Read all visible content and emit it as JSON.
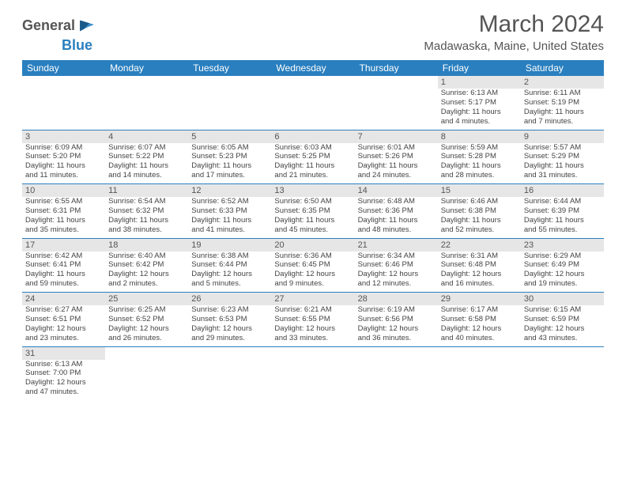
{
  "logo": {
    "text1": "General",
    "text2": "Blue"
  },
  "title": "March 2024",
  "location": "Madawaska, Maine, United States",
  "day_headers": [
    "Sunday",
    "Monday",
    "Tuesday",
    "Wednesday",
    "Thursday",
    "Friday",
    "Saturday"
  ],
  "header_bg": "#2a7fbf",
  "header_fg": "#ffffff",
  "daynum_bg": "#e6e6e6",
  "text_color": "#444444",
  "rule_color": "#2a7fbf",
  "weeks": [
    [
      null,
      null,
      null,
      null,
      null,
      {
        "n": "1",
        "sr": "Sunrise: 6:13 AM",
        "ss": "Sunset: 5:17 PM",
        "d1": "Daylight: 11 hours",
        "d2": "and 4 minutes."
      },
      {
        "n": "2",
        "sr": "Sunrise: 6:11 AM",
        "ss": "Sunset: 5:19 PM",
        "d1": "Daylight: 11 hours",
        "d2": "and 7 minutes."
      }
    ],
    [
      {
        "n": "3",
        "sr": "Sunrise: 6:09 AM",
        "ss": "Sunset: 5:20 PM",
        "d1": "Daylight: 11 hours",
        "d2": "and 11 minutes."
      },
      {
        "n": "4",
        "sr": "Sunrise: 6:07 AM",
        "ss": "Sunset: 5:22 PM",
        "d1": "Daylight: 11 hours",
        "d2": "and 14 minutes."
      },
      {
        "n": "5",
        "sr": "Sunrise: 6:05 AM",
        "ss": "Sunset: 5:23 PM",
        "d1": "Daylight: 11 hours",
        "d2": "and 17 minutes."
      },
      {
        "n": "6",
        "sr": "Sunrise: 6:03 AM",
        "ss": "Sunset: 5:25 PM",
        "d1": "Daylight: 11 hours",
        "d2": "and 21 minutes."
      },
      {
        "n": "7",
        "sr": "Sunrise: 6:01 AM",
        "ss": "Sunset: 5:26 PM",
        "d1": "Daylight: 11 hours",
        "d2": "and 24 minutes."
      },
      {
        "n": "8",
        "sr": "Sunrise: 5:59 AM",
        "ss": "Sunset: 5:28 PM",
        "d1": "Daylight: 11 hours",
        "d2": "and 28 minutes."
      },
      {
        "n": "9",
        "sr": "Sunrise: 5:57 AM",
        "ss": "Sunset: 5:29 PM",
        "d1": "Daylight: 11 hours",
        "d2": "and 31 minutes."
      }
    ],
    [
      {
        "n": "10",
        "sr": "Sunrise: 6:55 AM",
        "ss": "Sunset: 6:31 PM",
        "d1": "Daylight: 11 hours",
        "d2": "and 35 minutes."
      },
      {
        "n": "11",
        "sr": "Sunrise: 6:54 AM",
        "ss": "Sunset: 6:32 PM",
        "d1": "Daylight: 11 hours",
        "d2": "and 38 minutes."
      },
      {
        "n": "12",
        "sr": "Sunrise: 6:52 AM",
        "ss": "Sunset: 6:33 PM",
        "d1": "Daylight: 11 hours",
        "d2": "and 41 minutes."
      },
      {
        "n": "13",
        "sr": "Sunrise: 6:50 AM",
        "ss": "Sunset: 6:35 PM",
        "d1": "Daylight: 11 hours",
        "d2": "and 45 minutes."
      },
      {
        "n": "14",
        "sr": "Sunrise: 6:48 AM",
        "ss": "Sunset: 6:36 PM",
        "d1": "Daylight: 11 hours",
        "d2": "and 48 minutes."
      },
      {
        "n": "15",
        "sr": "Sunrise: 6:46 AM",
        "ss": "Sunset: 6:38 PM",
        "d1": "Daylight: 11 hours",
        "d2": "and 52 minutes."
      },
      {
        "n": "16",
        "sr": "Sunrise: 6:44 AM",
        "ss": "Sunset: 6:39 PM",
        "d1": "Daylight: 11 hours",
        "d2": "and 55 minutes."
      }
    ],
    [
      {
        "n": "17",
        "sr": "Sunrise: 6:42 AM",
        "ss": "Sunset: 6:41 PM",
        "d1": "Daylight: 11 hours",
        "d2": "and 59 minutes."
      },
      {
        "n": "18",
        "sr": "Sunrise: 6:40 AM",
        "ss": "Sunset: 6:42 PM",
        "d1": "Daylight: 12 hours",
        "d2": "and 2 minutes."
      },
      {
        "n": "19",
        "sr": "Sunrise: 6:38 AM",
        "ss": "Sunset: 6:44 PM",
        "d1": "Daylight: 12 hours",
        "d2": "and 5 minutes."
      },
      {
        "n": "20",
        "sr": "Sunrise: 6:36 AM",
        "ss": "Sunset: 6:45 PM",
        "d1": "Daylight: 12 hours",
        "d2": "and 9 minutes."
      },
      {
        "n": "21",
        "sr": "Sunrise: 6:34 AM",
        "ss": "Sunset: 6:46 PM",
        "d1": "Daylight: 12 hours",
        "d2": "and 12 minutes."
      },
      {
        "n": "22",
        "sr": "Sunrise: 6:31 AM",
        "ss": "Sunset: 6:48 PM",
        "d1": "Daylight: 12 hours",
        "d2": "and 16 minutes."
      },
      {
        "n": "23",
        "sr": "Sunrise: 6:29 AM",
        "ss": "Sunset: 6:49 PM",
        "d1": "Daylight: 12 hours",
        "d2": "and 19 minutes."
      }
    ],
    [
      {
        "n": "24",
        "sr": "Sunrise: 6:27 AM",
        "ss": "Sunset: 6:51 PM",
        "d1": "Daylight: 12 hours",
        "d2": "and 23 minutes."
      },
      {
        "n": "25",
        "sr": "Sunrise: 6:25 AM",
        "ss": "Sunset: 6:52 PM",
        "d1": "Daylight: 12 hours",
        "d2": "and 26 minutes."
      },
      {
        "n": "26",
        "sr": "Sunrise: 6:23 AM",
        "ss": "Sunset: 6:53 PM",
        "d1": "Daylight: 12 hours",
        "d2": "and 29 minutes."
      },
      {
        "n": "27",
        "sr": "Sunrise: 6:21 AM",
        "ss": "Sunset: 6:55 PM",
        "d1": "Daylight: 12 hours",
        "d2": "and 33 minutes."
      },
      {
        "n": "28",
        "sr": "Sunrise: 6:19 AM",
        "ss": "Sunset: 6:56 PM",
        "d1": "Daylight: 12 hours",
        "d2": "and 36 minutes."
      },
      {
        "n": "29",
        "sr": "Sunrise: 6:17 AM",
        "ss": "Sunset: 6:58 PM",
        "d1": "Daylight: 12 hours",
        "d2": "and 40 minutes."
      },
      {
        "n": "30",
        "sr": "Sunrise: 6:15 AM",
        "ss": "Sunset: 6:59 PM",
        "d1": "Daylight: 12 hours",
        "d2": "and 43 minutes."
      }
    ],
    [
      {
        "n": "31",
        "sr": "Sunrise: 6:13 AM",
        "ss": "Sunset: 7:00 PM",
        "d1": "Daylight: 12 hours",
        "d2": "and 47 minutes."
      },
      null,
      null,
      null,
      null,
      null,
      null
    ]
  ]
}
